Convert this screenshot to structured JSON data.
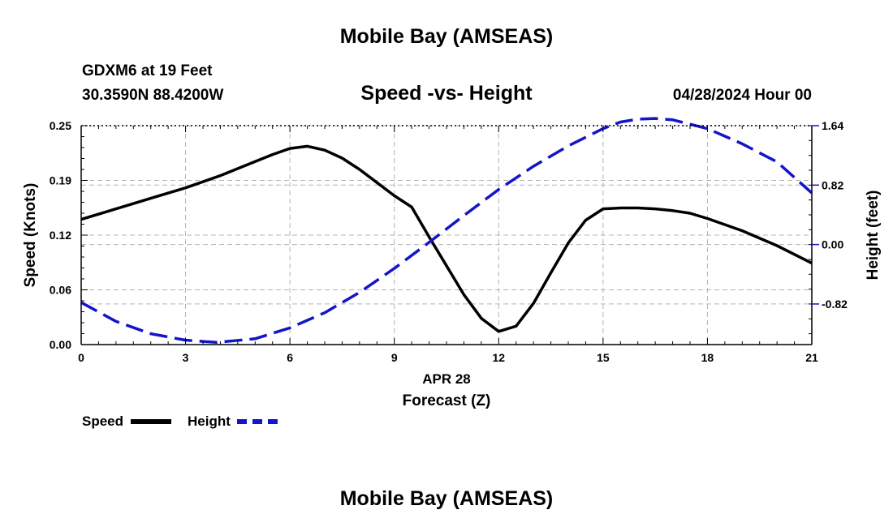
{
  "title": "Mobile Bay (AMSEAS)",
  "footer_title": "Mobile Bay (AMSEAS)",
  "station": "GDXM6 at 19 Feet",
  "coordinates": "30.3590N  88.4200W",
  "subtitle": "Speed -vs- Height",
  "datetime": "04/28/2024 Hour 00",
  "colors": {
    "speed": "#000000",
    "height": "#1414c8",
    "grid": "#b4b4b4"
  },
  "legend": {
    "speed_label": "Speed",
    "height_label": "Height"
  },
  "chart_data": {
    "type": "line",
    "title": "Speed -vs- Height",
    "xlabel": "Forecast (Z)",
    "xlabel_date": "APR 28",
    "ylabel": "Speed (Knots)",
    "y2label": "Height (feet)",
    "xlim": [
      0,
      21
    ],
    "ylim": [
      0,
      0.25
    ],
    "y2lim": [
      -1.38,
      1.64
    ],
    "x_ticks": [
      0,
      3,
      6,
      9,
      12,
      15,
      18,
      21
    ],
    "x_tick_labels": [
      "0",
      "3",
      "6",
      "9",
      "12",
      "15",
      "18",
      "21"
    ],
    "y_ticks": [
      0,
      0.0625,
      0.125,
      0.1875,
      0.25
    ],
    "y_tick_labels": [
      "0.00",
      "0.06",
      "0.12",
      "0.19",
      "0.25"
    ],
    "y2_ticks": [
      -0.82,
      0.0,
      0.82,
      1.64
    ],
    "y2_tick_labels": [
      "-0.82",
      "0.00",
      "0.82",
      "1.64"
    ],
    "grid": true,
    "series": [
      {
        "name": "Speed",
        "axis": "left",
        "style": "solid",
        "x": [
          0,
          1,
          2,
          3,
          4,
          5,
          5.5,
          6,
          6.5,
          7,
          7.5,
          8,
          8.5,
          9,
          9.5,
          10,
          10.5,
          11,
          11.5,
          12,
          12.5,
          13,
          13.5,
          14,
          14.5,
          15,
          15.5,
          16,
          16.5,
          17,
          17.5,
          18,
          19,
          20,
          20.5,
          21
        ],
        "values": [
          0.143,
          0.155,
          0.167,
          0.179,
          0.193,
          0.209,
          0.217,
          0.224,
          0.2265,
          0.222,
          0.213,
          0.2,
          0.185,
          0.17,
          0.157,
          0.123,
          0.09,
          0.057,
          0.03,
          0.015,
          0.021,
          0.047,
          0.082,
          0.116,
          0.142,
          0.155,
          0.156,
          0.156,
          0.155,
          0.153,
          0.15,
          0.144,
          0.13,
          0.113,
          0.103,
          0.093
        ]
      },
      {
        "name": "Height",
        "axis": "right",
        "style": "dashed",
        "x": [
          0,
          1,
          2,
          3,
          3.9,
          5,
          6,
          7,
          8,
          9,
          10,
          11,
          12,
          13,
          14,
          15,
          15.5,
          16,
          16.5,
          17,
          18,
          19,
          20,
          21
        ],
        "values": [
          -0.8,
          -1.06,
          -1.23,
          -1.32,
          -1.35,
          -1.3,
          -1.15,
          -0.94,
          -0.66,
          -0.33,
          0.03,
          0.4,
          0.76,
          1.08,
          1.36,
          1.6,
          1.69,
          1.73,
          1.74,
          1.72,
          1.6,
          1.39,
          1.14,
          0.71
        ]
      }
    ]
  }
}
